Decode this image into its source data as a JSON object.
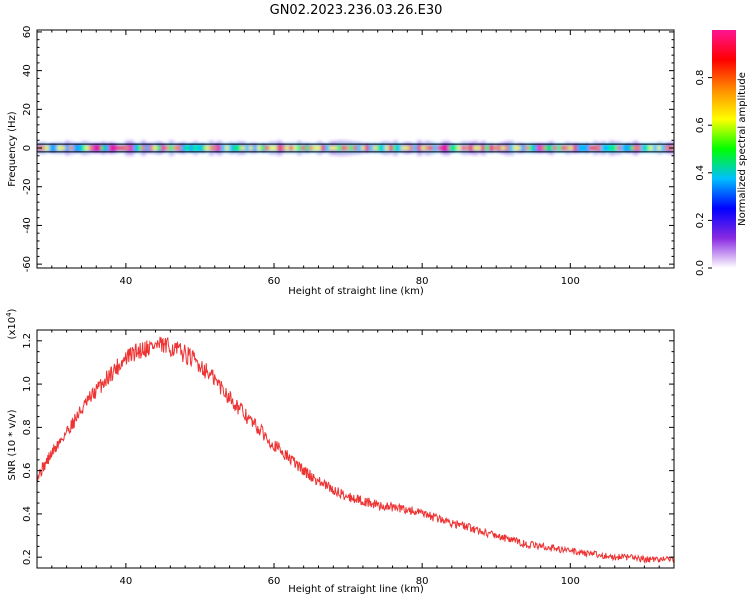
{
  "figure_title": "GN02.2023.236.03.26.E30",
  "chart_data": [
    {
      "type": "heatmap",
      "xlabel": "Height of straight line (km)",
      "ylabel": "Frequency (Hz)",
      "xlim": [
        28,
        114
      ],
      "ylim": [
        -62,
        61
      ],
      "x_ticks": [
        40,
        60,
        80,
        100
      ],
      "y_ticks": [
        -60,
        -40,
        -20,
        0,
        20,
        40,
        60
      ],
      "band_center_hz": 0,
      "band_halfwidth_hz": 2,
      "colorbar": {
        "label": "Normalized spectral amplitude",
        "range": [
          0,
          1
        ],
        "ticks": [
          0.0,
          0.2,
          0.4,
          0.6,
          0.8
        ],
        "colormap": [
          "#ffffff",
          "#8a2be2",
          "#0000ff",
          "#00bfff",
          "#00ff00",
          "#ffff00",
          "#ff8c00",
          "#ff0000",
          "#ff1493"
        ]
      }
    },
    {
      "type": "line",
      "xlabel": "Height of straight line (km)",
      "ylabel": "SNR (10 * v/v)",
      "y_multiplier_label": "(x10",
      "y_multiplier_exp": "4",
      "y_multiplier_close": ")",
      "xlim": [
        28,
        114
      ],
      "ylim": [
        0.15,
        1.25
      ],
      "x_ticks": [
        40,
        60,
        80,
        100
      ],
      "y_ticks": [
        0.2,
        0.4,
        0.6,
        0.8,
        1.0,
        1.2
      ],
      "y_tick_labels": [
        "0.2",
        "0.4",
        "0.6",
        "0.8",
        "1.0",
        "1.2"
      ],
      "series": [
        {
          "color": "#ee3333",
          "x": [
            28,
            30,
            32,
            34,
            36,
            38,
            40,
            42,
            44,
            46,
            48,
            50,
            52,
            54,
            56,
            58,
            60,
            62,
            64,
            66,
            68,
            70,
            72,
            74,
            76,
            78,
            80,
            82,
            84,
            86,
            88,
            90,
            92,
            94,
            96,
            98,
            100,
            102,
            104,
            106,
            108,
            110,
            112,
            114
          ],
          "y": [
            0.57,
            0.68,
            0.78,
            0.88,
            0.97,
            1.05,
            1.12,
            1.16,
            1.18,
            1.17,
            1.14,
            1.09,
            1.02,
            0.94,
            0.86,
            0.79,
            0.72,
            0.66,
            0.6,
            0.55,
            0.51,
            0.48,
            0.46,
            0.44,
            0.43,
            0.42,
            0.4,
            0.38,
            0.36,
            0.34,
            0.32,
            0.3,
            0.28,
            0.26,
            0.25,
            0.24,
            0.23,
            0.22,
            0.21,
            0.2,
            0.2,
            0.19,
            0.19,
            0.19
          ]
        }
      ]
    }
  ]
}
